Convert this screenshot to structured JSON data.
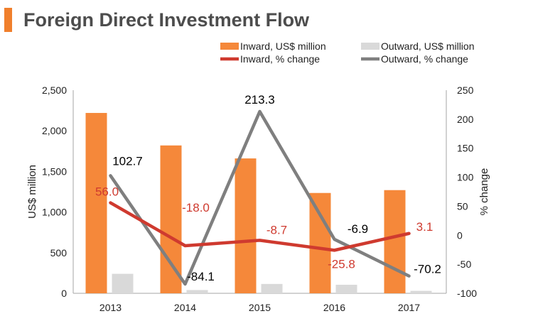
{
  "header": {
    "title": "Foreign Direct Investment Flow",
    "accent_color": "#f07f2c"
  },
  "chart_data": {
    "type": "bar",
    "title": "Foreign Direct Investment Flow",
    "categories": [
      "2013",
      "2014",
      "2015",
      "2016",
      "2017"
    ],
    "ylabel": "US$ million",
    "ylim": [
      0,
      2500
    ],
    "yticks": [
      "0",
      "500",
      "1,000",
      "1,500",
      "2,000",
      "2,500"
    ],
    "y2label": "% change",
    "y2lim": [
      -100,
      250
    ],
    "y2ticks": [
      "-100",
      "-50",
      "0",
      "50",
      "100",
      "150",
      "200",
      "250"
    ],
    "grid": false,
    "legend_position": "top",
    "series": [
      {
        "name": "Inward, US$ million",
        "kind": "bar",
        "axis": "left",
        "color": "#f5883a",
        "values": [
          2220,
          1820,
          1660,
          1235,
          1270
        ]
      },
      {
        "name": "Outward, US$ million",
        "kind": "bar",
        "axis": "left",
        "color": "#d9d9d9",
        "values": [
          240,
          40,
          115,
          105,
          30
        ]
      },
      {
        "name": "Inward, % change",
        "kind": "line",
        "axis": "right",
        "color": "#cf3a2f",
        "values": [
          56.0,
          -18.0,
          -8.7,
          -25.8,
          3.1
        ],
        "labels": [
          "56.0",
          "-18.0",
          "-8.7",
          "-25.8",
          "3.1"
        ]
      },
      {
        "name": "Outward, % change",
        "kind": "line",
        "axis": "right",
        "color": "#7f7f7f",
        "values": [
          102.7,
          -84.1,
          213.3,
          -6.9,
          -70.2
        ],
        "labels": [
          "102.7",
          "-84.1",
          "213.3",
          "-6.9",
          "-70.2"
        ]
      }
    ]
  }
}
